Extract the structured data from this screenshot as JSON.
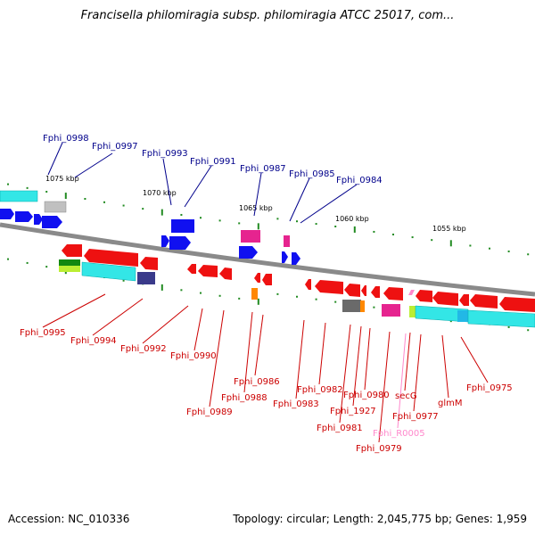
{
  "title": "Francisella philomiragia subsp. philomiragia ATCC 25017, com...",
  "accession": "Accession: NC_010336",
  "summary": "Topology: circular; Length: 2,045,775 bp; Genes: 1,959",
  "colors": {
    "forward_label": "#00008b",
    "reverse_label": "#cc0000",
    "rna_label": "#ff88cc",
    "backbone": "#8a8a8a",
    "tick": "#228b22"
  },
  "scale_labels": [
    "1075 kbp",
    "1070 kbp",
    "1065 kbp",
    "1060 kbp",
    "1055 kbp"
  ],
  "forward_genes": [
    "Fphi_0998",
    "Fphi_0997",
    "Fphi_0993",
    "Fphi_0991",
    "Fphi_0987",
    "Fphi_0985",
    "Fphi_0984"
  ],
  "reverse_genes": [
    "Fphi_0995",
    "Fphi_0994",
    "Fphi_0992",
    "Fphi_0990",
    "Fphi_0989",
    "Fphi_0988",
    "Fphi_0986",
    "Fphi_0983",
    "Fphi_0982",
    "Fphi_0981",
    "Fphi_1927",
    "Fphi_0980",
    "Fphi_0979",
    "Fphi_R0005",
    "secG",
    "Fphi_0977",
    "glmM",
    "Fphi_0975"
  ]
}
